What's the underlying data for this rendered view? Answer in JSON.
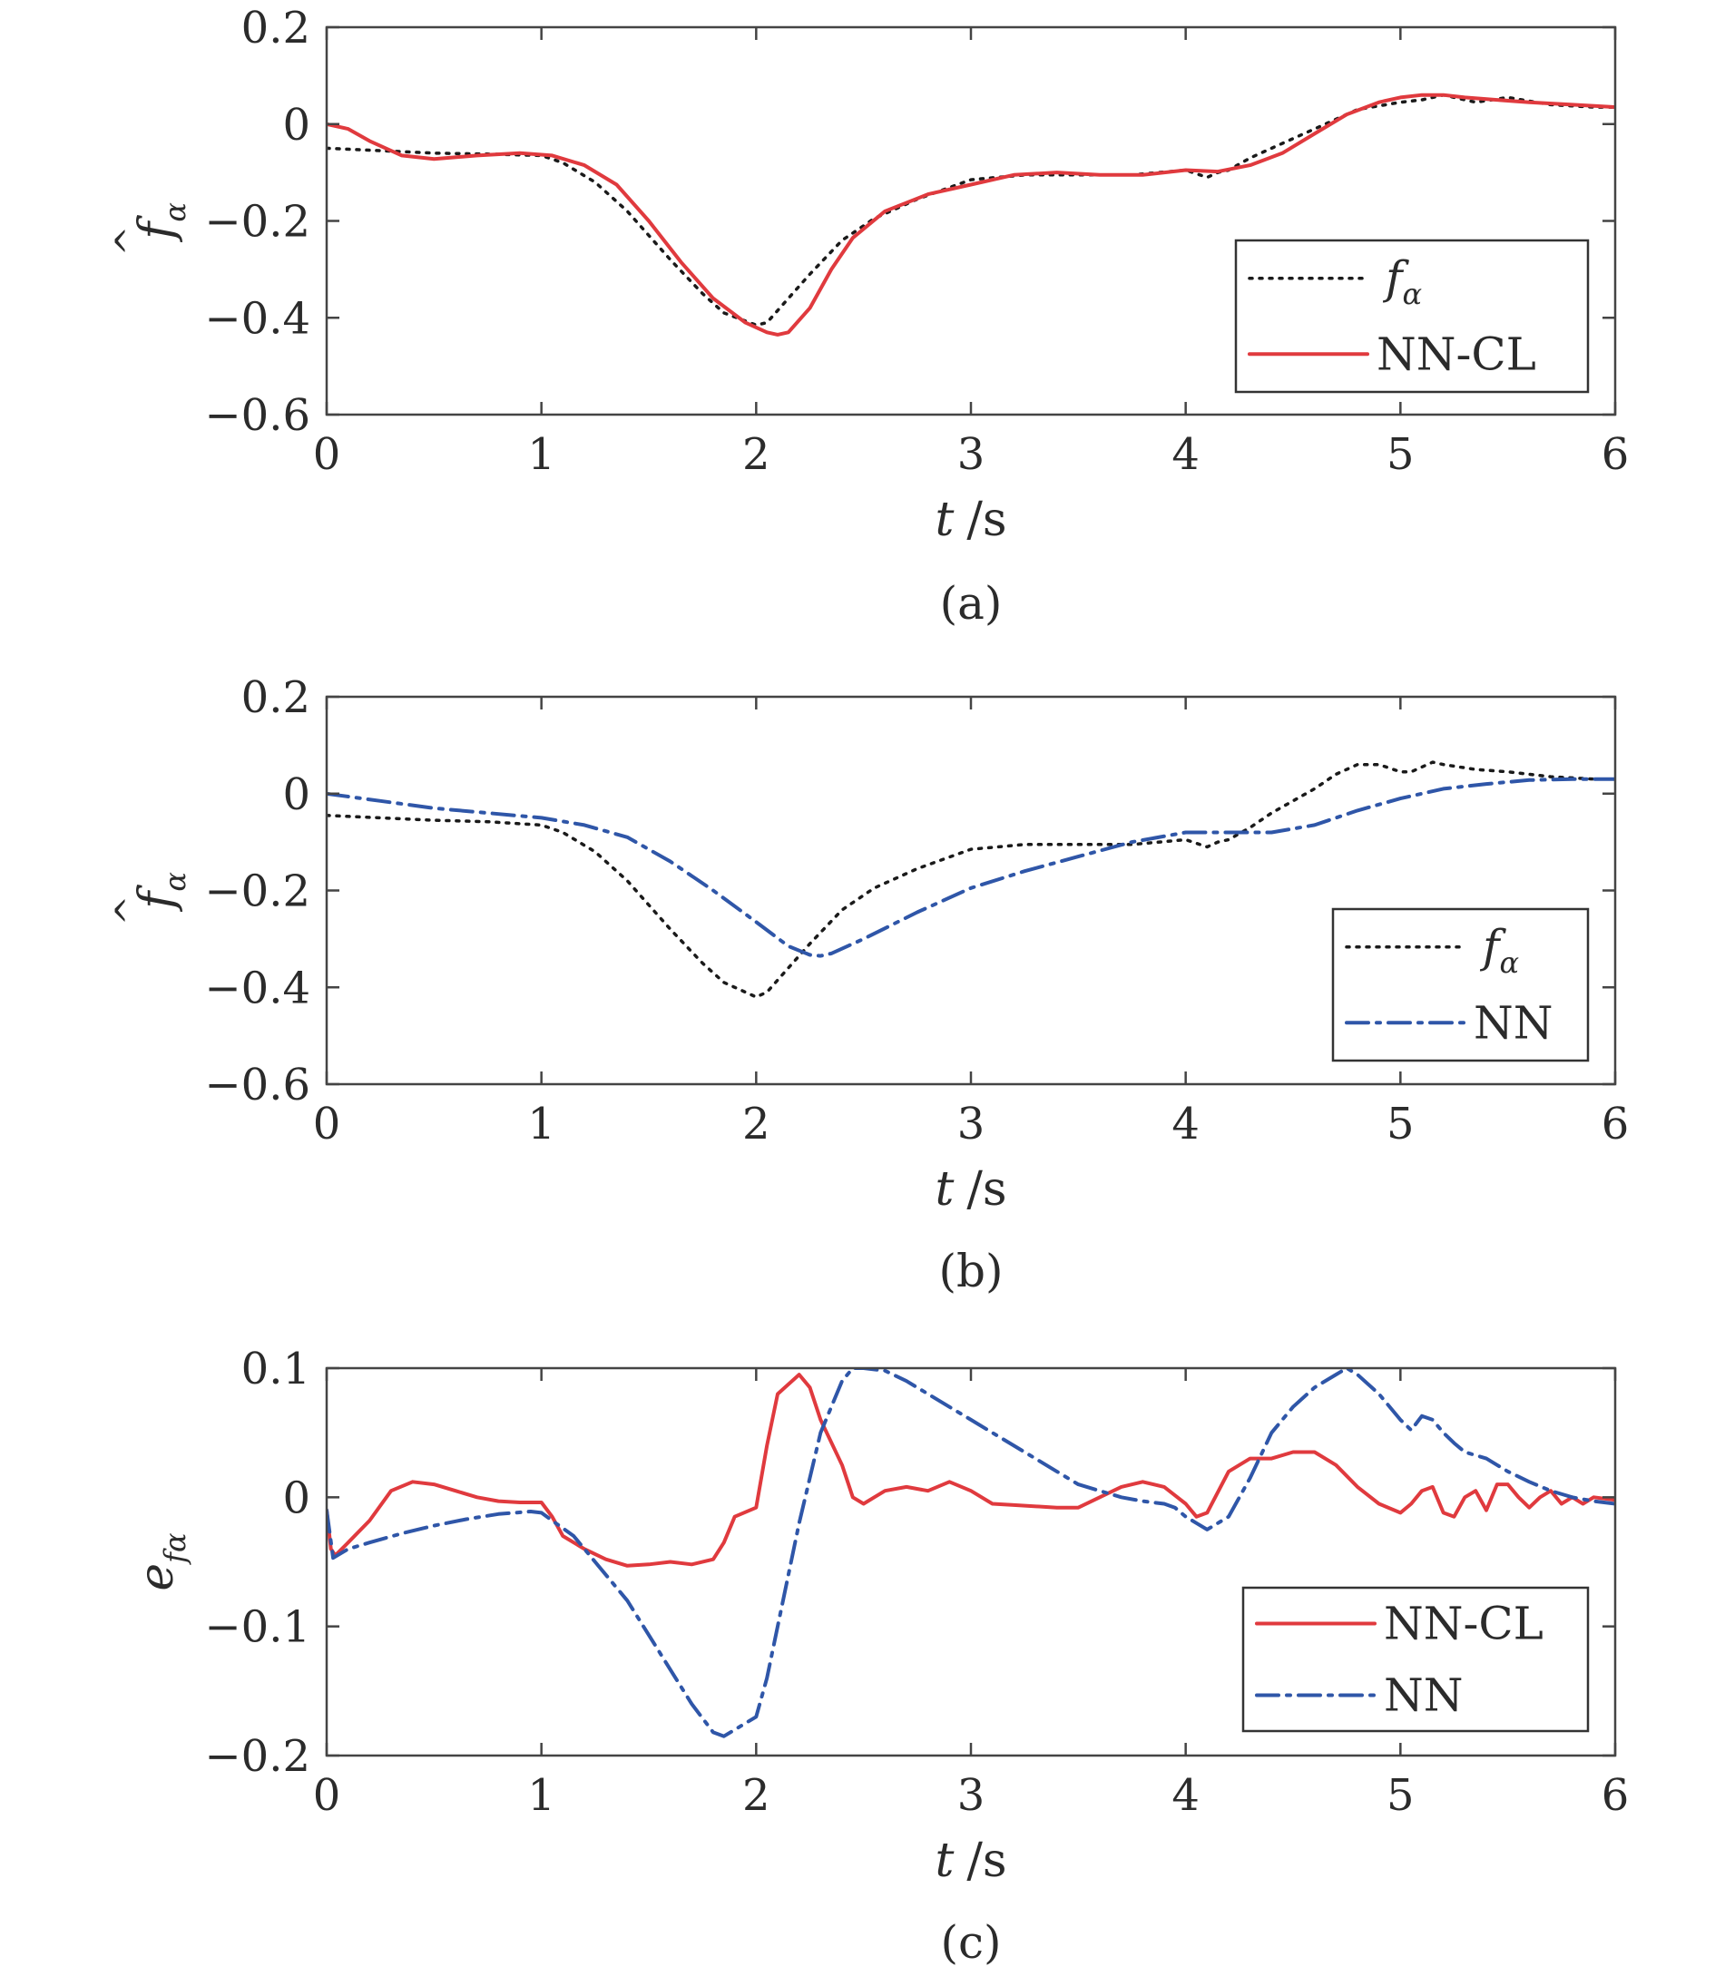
{
  "colors": {
    "f_alpha": "#1a1a1a",
    "nn_cl": "#e03a3e",
    "nn": "#2f56a8",
    "axes": "#444444"
  },
  "chart_data": [
    {
      "id": "a",
      "type": "line",
      "panel_label": "(a)",
      "xlabel_var": "t",
      "xlabel_unit": "/s",
      "ylabel_symbol": "f",
      "ylabel_accent": "^",
      "ylabel_subscript": "α",
      "xlim": [
        0,
        6
      ],
      "ylim": [
        -0.6,
        0.2
      ],
      "xticks": [
        0,
        1,
        2,
        3,
        4,
        5,
        6
      ],
      "yticks": [
        -0.6,
        -0.4,
        -0.2,
        0,
        0.2
      ],
      "ytick_labels": [
        "−0.6",
        "−0.4",
        "−0.2",
        "0",
        "0.2"
      ],
      "grid": false,
      "legend_position": "lower-right",
      "legend_entries": [
        {
          "symbol": "f",
          "subscript": "α",
          "text": "",
          "series": 0
        },
        {
          "symbol": "",
          "subscript": "",
          "text": "NN-CL",
          "series": 1
        }
      ],
      "series": [
        {
          "style": "dotted",
          "color_key": "f_alpha",
          "x": [
            0,
            0.25,
            0.5,
            0.75,
            1.0,
            1.1,
            1.25,
            1.4,
            1.5,
            1.6,
            1.75,
            1.85,
            2.0,
            2.05,
            2.15,
            2.25,
            2.4,
            2.55,
            2.75,
            3.0,
            3.25,
            3.5,
            3.75,
            4.0,
            4.1,
            4.15,
            4.2,
            4.3,
            4.4,
            4.6,
            4.8,
            5.0,
            5.1,
            5.2,
            5.35,
            5.5,
            5.7,
            5.9,
            6.0
          ],
          "y": [
            -0.05,
            -0.055,
            -0.06,
            -0.062,
            -0.065,
            -0.08,
            -0.12,
            -0.18,
            -0.23,
            -0.28,
            -0.35,
            -0.39,
            -0.415,
            -0.41,
            -0.36,
            -0.31,
            -0.24,
            -0.195,
            -0.155,
            -0.115,
            -0.105,
            -0.105,
            -0.105,
            -0.095,
            -0.11,
            -0.1,
            -0.095,
            -0.07,
            -0.05,
            -0.01,
            0.03,
            0.045,
            0.05,
            0.06,
            0.045,
            0.055,
            0.04,
            0.035,
            0.035
          ]
        },
        {
          "style": "solid",
          "color_key": "nn_cl",
          "x": [
            0,
            0.1,
            0.2,
            0.35,
            0.5,
            0.7,
            0.9,
            1.05,
            1.2,
            1.35,
            1.5,
            1.65,
            1.8,
            1.95,
            2.05,
            2.1,
            2.15,
            2.25,
            2.35,
            2.45,
            2.6,
            2.8,
            3.0,
            3.2,
            3.4,
            3.6,
            3.8,
            4.0,
            4.15,
            4.3,
            4.45,
            4.6,
            4.75,
            4.9,
            5.0,
            5.1,
            5.2,
            5.3,
            5.45,
            5.6,
            5.8,
            6.0
          ],
          "y": [
            0.0,
            -0.01,
            -0.035,
            -0.065,
            -0.072,
            -0.065,
            -0.06,
            -0.065,
            -0.085,
            -0.125,
            -0.2,
            -0.285,
            -0.36,
            -0.41,
            -0.43,
            -0.435,
            -0.43,
            -0.38,
            -0.3,
            -0.235,
            -0.18,
            -0.145,
            -0.125,
            -0.105,
            -0.1,
            -0.105,
            -0.105,
            -0.095,
            -0.098,
            -0.085,
            -0.06,
            -0.02,
            0.02,
            0.045,
            0.055,
            0.06,
            0.06,
            0.055,
            0.05,
            0.045,
            0.04,
            0.035
          ]
        }
      ]
    },
    {
      "id": "b",
      "type": "line",
      "panel_label": "(b)",
      "xlabel_var": "t",
      "xlabel_unit": "/s",
      "ylabel_symbol": "f",
      "ylabel_accent": "^",
      "ylabel_subscript": "α",
      "xlim": [
        0,
        6
      ],
      "ylim": [
        -0.6,
        0.2
      ],
      "xticks": [
        0,
        1,
        2,
        3,
        4,
        5,
        6
      ],
      "yticks": [
        -0.6,
        -0.4,
        -0.2,
        0,
        0.2
      ],
      "ytick_labels": [
        "−0.6",
        "−0.4",
        "−0.2",
        "0",
        "0.2"
      ],
      "grid": false,
      "legend_position": "lower-right",
      "legend_entries": [
        {
          "symbol": "f",
          "subscript": "α",
          "text": "",
          "series": 0
        },
        {
          "symbol": "",
          "subscript": "",
          "text": "NN",
          "series": 1
        }
      ],
      "series": [
        {
          "style": "dotted",
          "color_key": "f_alpha",
          "x": [
            0,
            0.25,
            0.5,
            0.75,
            1.0,
            1.1,
            1.25,
            1.4,
            1.5,
            1.6,
            1.75,
            1.85,
            2.0,
            2.05,
            2.15,
            2.25,
            2.4,
            2.55,
            2.75,
            3.0,
            3.25,
            3.5,
            3.75,
            4.0,
            4.1,
            4.15,
            4.2,
            4.3,
            4.4,
            4.6,
            4.7,
            4.8,
            4.9,
            5.0,
            5.05,
            5.15,
            5.2,
            5.35,
            5.5,
            5.7,
            5.9,
            6.0
          ],
          "y": [
            -0.045,
            -0.05,
            -0.055,
            -0.058,
            -0.065,
            -0.08,
            -0.12,
            -0.18,
            -0.23,
            -0.28,
            -0.35,
            -0.39,
            -0.42,
            -0.41,
            -0.36,
            -0.31,
            -0.24,
            -0.195,
            -0.155,
            -0.115,
            -0.105,
            -0.105,
            -0.105,
            -0.095,
            -0.11,
            -0.1,
            -0.095,
            -0.07,
            -0.04,
            0.01,
            0.04,
            0.06,
            0.06,
            0.045,
            0.045,
            0.065,
            0.06,
            0.05,
            0.045,
            0.035,
            0.03,
            0.03
          ]
        },
        {
          "style": "dashdot",
          "color_key": "nn",
          "x": [
            0,
            0.25,
            0.5,
            0.75,
            1.0,
            1.2,
            1.4,
            1.6,
            1.8,
            2.0,
            2.15,
            2.25,
            2.3,
            2.35,
            2.5,
            2.75,
            3.0,
            3.25,
            3.5,
            3.75,
            4.0,
            4.2,
            4.4,
            4.6,
            4.8,
            5.0,
            5.2,
            5.4,
            5.6,
            5.8,
            6.0
          ],
          "y": [
            0.0,
            -0.015,
            -0.03,
            -0.04,
            -0.05,
            -0.065,
            -0.09,
            -0.14,
            -0.2,
            -0.265,
            -0.315,
            -0.333,
            -0.335,
            -0.33,
            -0.3,
            -0.245,
            -0.195,
            -0.16,
            -0.13,
            -0.1,
            -0.08,
            -0.08,
            -0.08,
            -0.065,
            -0.035,
            -0.01,
            0.01,
            0.02,
            0.028,
            0.03,
            0.03
          ]
        }
      ]
    },
    {
      "id": "c",
      "type": "line",
      "panel_label": "(c)",
      "xlabel_var": "t",
      "xlabel_unit": "/s",
      "ylabel_symbol": "e",
      "ylabel_accent": "",
      "ylabel_subscript": "fα",
      "xlim": [
        0,
        6
      ],
      "ylim": [
        -0.2,
        0.1
      ],
      "xticks": [
        0,
        1,
        2,
        3,
        4,
        5,
        6
      ],
      "yticks": [
        -0.2,
        -0.1,
        0,
        0.1
      ],
      "ytick_labels": [
        "−0.2",
        "−0.1",
        "0",
        "0.1"
      ],
      "grid": false,
      "legend_position": "lower-right",
      "legend_entries": [
        {
          "symbol": "",
          "subscript": "",
          "text": "NN-CL",
          "series": 0
        },
        {
          "symbol": "",
          "subscript": "",
          "text": "NN",
          "series": 1
        }
      ],
      "series": [
        {
          "style": "solid",
          "color_key": "nn_cl",
          "x": [
            0,
            0.02,
            0.04,
            0.1,
            0.2,
            0.3,
            0.4,
            0.5,
            0.6,
            0.7,
            0.8,
            0.9,
            1.0,
            1.05,
            1.1,
            1.2,
            1.3,
            1.4,
            1.5,
            1.6,
            1.7,
            1.8,
            1.85,
            1.9,
            2.0,
            2.05,
            2.1,
            2.2,
            2.25,
            2.3,
            2.4,
            2.45,
            2.5,
            2.55,
            2.6,
            2.7,
            2.8,
            2.9,
            3.0,
            3.1,
            3.2,
            3.4,
            3.5,
            3.6,
            3.7,
            3.8,
            3.9,
            4.0,
            4.05,
            4.1,
            4.2,
            4.3,
            4.4,
            4.5,
            4.6,
            4.7,
            4.8,
            4.9,
            5.0,
            5.05,
            5.1,
            5.15,
            5.2,
            5.25,
            5.3,
            5.35,
            5.4,
            5.45,
            5.5,
            5.55,
            5.6,
            5.65,
            5.7,
            5.75,
            5.8,
            5.85,
            5.9,
            6.0
          ],
          "y": [
            -0.01,
            -0.04,
            -0.045,
            -0.035,
            -0.018,
            0.005,
            0.012,
            0.01,
            0.005,
            0.0,
            -0.003,
            -0.004,
            -0.004,
            -0.015,
            -0.03,
            -0.04,
            -0.048,
            -0.053,
            -0.052,
            -0.05,
            -0.052,
            -0.048,
            -0.035,
            -0.015,
            -0.008,
            0.04,
            0.08,
            0.095,
            0.085,
            0.06,
            0.025,
            0.0,
            -0.005,
            0.0,
            0.005,
            0.008,
            0.005,
            0.012,
            0.005,
            -0.005,
            -0.006,
            -0.008,
            -0.008,
            0.0,
            0.008,
            0.012,
            0.008,
            -0.005,
            -0.015,
            -0.012,
            0.02,
            0.03,
            0.03,
            0.035,
            0.035,
            0.025,
            0.008,
            -0.005,
            -0.012,
            -0.005,
            0.005,
            0.008,
            -0.012,
            -0.015,
            0.0,
            0.005,
            -0.01,
            0.01,
            0.01,
            0.0,
            -0.008,
            0.0,
            0.005,
            -0.005,
            0.0,
            -0.005,
            0.0,
            -0.002
          ]
        },
        {
          "style": "dashdot",
          "color_key": "nn",
          "x": [
            0,
            0.03,
            0.1,
            0.2,
            0.35,
            0.5,
            0.65,
            0.8,
            0.95,
            1.0,
            1.05,
            1.15,
            1.25,
            1.4,
            1.55,
            1.7,
            1.8,
            1.85,
            1.9,
            2.0,
            2.05,
            2.1,
            2.2,
            2.3,
            2.4,
            2.45,
            2.5,
            2.6,
            2.7,
            2.8,
            2.9,
            3.0,
            3.1,
            3.2,
            3.3,
            3.4,
            3.5,
            3.6,
            3.7,
            3.8,
            3.9,
            3.95,
            4.0,
            4.05,
            4.1,
            4.2,
            4.3,
            4.4,
            4.5,
            4.6,
            4.7,
            4.75,
            4.8,
            4.9,
            5.0,
            5.05,
            5.1,
            5.15,
            5.2,
            5.25,
            5.3,
            5.4,
            5.5,
            5.6,
            5.7,
            5.8,
            5.9,
            6.0
          ],
          "y": [
            -0.01,
            -0.047,
            -0.04,
            -0.035,
            -0.028,
            -0.022,
            -0.017,
            -0.013,
            -0.011,
            -0.012,
            -0.018,
            -0.03,
            -0.05,
            -0.08,
            -0.12,
            -0.16,
            -0.182,
            -0.185,
            -0.18,
            -0.17,
            -0.14,
            -0.1,
            -0.02,
            0.05,
            0.09,
            0.1,
            0.1,
            0.098,
            0.09,
            0.08,
            0.07,
            0.06,
            0.05,
            0.04,
            0.03,
            0.02,
            0.01,
            0.005,
            0.0,
            -0.003,
            -0.005,
            -0.008,
            -0.015,
            -0.02,
            -0.025,
            -0.015,
            0.015,
            0.05,
            0.07,
            0.085,
            0.095,
            0.1,
            0.095,
            0.08,
            0.06,
            0.052,
            0.063,
            0.06,
            0.05,
            0.042,
            0.035,
            0.03,
            0.02,
            0.012,
            0.005,
            0.0,
            -0.003,
            -0.005
          ]
        }
      ]
    }
  ]
}
